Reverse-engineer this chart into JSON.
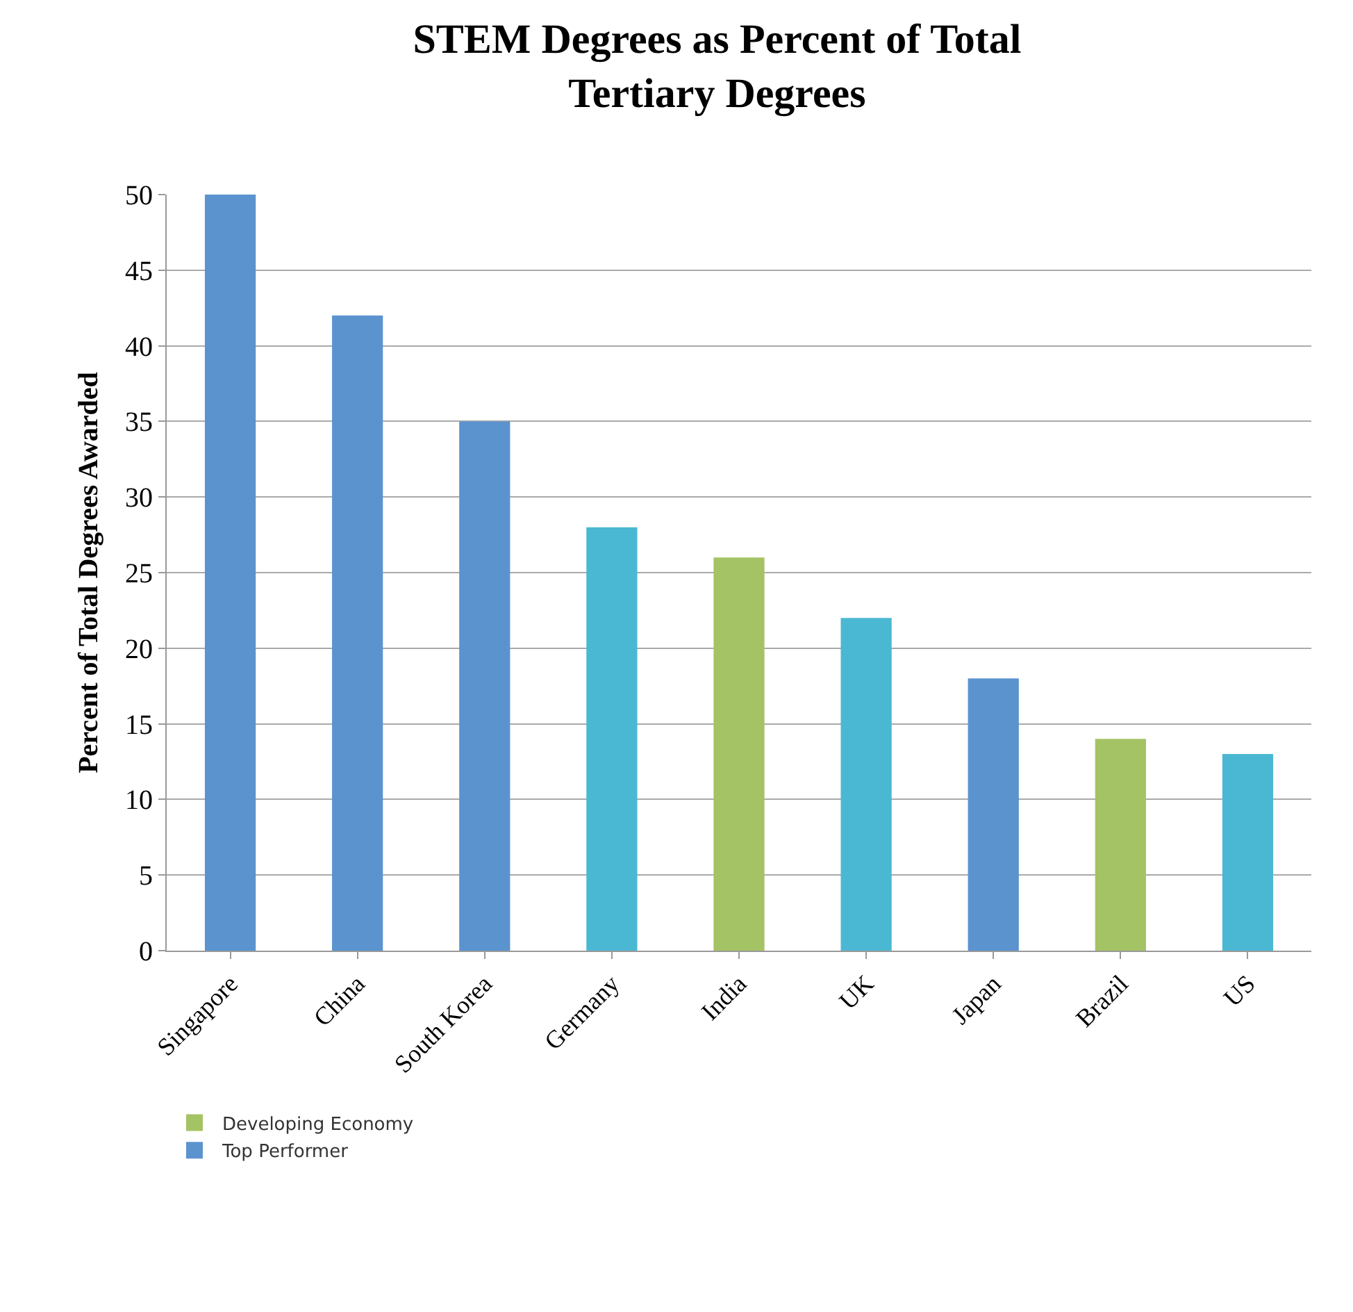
{
  "chart_data": {
    "type": "bar",
    "title": "STEM Degrees as Percent of Total Tertiary Degrees",
    "ylabel": "Percent of Total Degrees Awarded",
    "categories": [
      "Singapore",
      "China",
      "South Korea",
      "Germany",
      "India",
      "UK",
      "Japan",
      "Brazil",
      "US"
    ],
    "series": [
      {
        "name": "Developing Economy",
        "color": "#a4c364",
        "values": [
          null,
          null,
          null,
          null,
          26,
          null,
          null,
          14,
          null
        ]
      },
      {
        "name": "Top Performer",
        "color": "#5b93cf",
        "values": [
          50,
          42,
          35,
          null,
          null,
          null,
          18,
          null,
          null
        ]
      },
      {
        "color": "#4bb8d3",
        "values": [
          null,
          null,
          null,
          28,
          null,
          22,
          null,
          null,
          13
        ]
      }
    ],
    "ylim": [
      0,
      50
    ],
    "yticks": [
      0,
      5,
      10,
      15,
      20,
      25,
      30,
      35,
      40,
      45,
      50
    ],
    "grid": "y",
    "legend": "bottom left"
  }
}
